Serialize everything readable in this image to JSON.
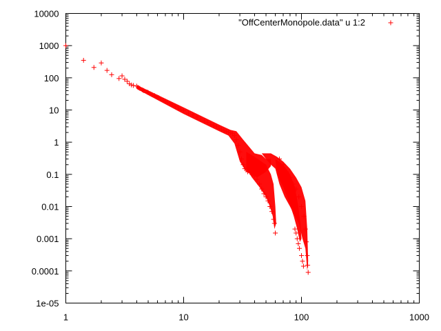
{
  "chart_data": {
    "type": "scatter",
    "xscale": "log",
    "yscale": "log",
    "xlim": [
      1,
      1000
    ],
    "ylim": [
      1e-05,
      10000
    ],
    "xticks": [
      1,
      10,
      100,
      1000
    ],
    "xtick_labels": [
      "1",
      "10",
      "100",
      "1000"
    ],
    "yticks": [
      1e-05,
      0.0001,
      0.001,
      0.01,
      0.1,
      1,
      10,
      100,
      1000,
      10000
    ],
    "ytick_labels": [
      "1e-05",
      "0.0001",
      "0.001",
      "0.01",
      "0.1",
      "1",
      "10",
      "100",
      "1000",
      "10000"
    ],
    "grid": false,
    "legend_position": "top-right",
    "series": [
      {
        "name": "\"OffCenterMonopole.data\" u 1:2",
        "marker": "+",
        "color": "#ff0000",
        "points": [
          [
            1,
            1000
          ],
          [
            1.414,
            350
          ],
          [
            1.732,
            210
          ],
          [
            2,
            290
          ],
          [
            2.236,
            170
          ],
          [
            2.449,
            125
          ],
          [
            2.828,
            95
          ],
          [
            3,
            115
          ],
          [
            3.162,
            90
          ],
          [
            3.317,
            78
          ],
          [
            3.464,
            65
          ],
          [
            3.606,
            60
          ],
          [
            3.742,
            58
          ],
          [
            4,
            55
          ],
          [
            4.123,
            50
          ],
          [
            4.243,
            47
          ],
          [
            4.472,
            42
          ],
          [
            4.583,
            40
          ],
          [
            4.899,
            36
          ],
          [
            5,
            35
          ],
          [
            5.196,
            32
          ],
          [
            5.385,
            30
          ],
          [
            5.657,
            28
          ],
          [
            5.831,
            26
          ],
          [
            6,
            25
          ],
          [
            6.164,
            24
          ],
          [
            6.403,
            22
          ],
          [
            6.708,
            20
          ],
          [
            7,
            18.5
          ],
          [
            7.28,
            17
          ],
          [
            7.616,
            16
          ],
          [
            8,
            14.5
          ],
          [
            8.485,
            13
          ],
          [
            9,
            11.5
          ],
          [
            9.487,
            10.5
          ],
          [
            10,
            9.5
          ],
          [
            11,
            8
          ],
          [
            12,
            7
          ],
          [
            13,
            6
          ],
          [
            14,
            5.2
          ],
          [
            15,
            4.6
          ],
          [
            16,
            4.1
          ],
          [
            17,
            3.6
          ],
          [
            18,
            3.3
          ],
          [
            19,
            3
          ],
          [
            20,
            2.7
          ],
          [
            21,
            2.5
          ],
          [
            22,
            2.3
          ],
          [
            23,
            2.15
          ],
          [
            24,
            2.05
          ],
          [
            25,
            1.95
          ],
          [
            26,
            1.85
          ],
          [
            27,
            1.6
          ],
          [
            28,
            1.2
          ],
          [
            29,
            0.8
          ],
          [
            30,
            0.5
          ],
          [
            31,
            0.3
          ],
          [
            32,
            0.2
          ],
          [
            33,
            0.15
          ],
          [
            35,
            0.12
          ],
          [
            38,
            0.1
          ],
          [
            40,
            0.09
          ],
          [
            42,
            0.07
          ],
          [
            44,
            0.05
          ],
          [
            46,
            0.035
          ],
          [
            48,
            0.025
          ],
          [
            50,
            0.02
          ],
          [
            52,
            0.015
          ],
          [
            54,
            0.01
          ],
          [
            56,
            0.007
          ],
          [
            58,
            0.004
          ],
          [
            59,
            0.003
          ],
          [
            60,
            0.0015
          ],
          [
            65,
            0.3
          ],
          [
            70,
            0.2
          ],
          [
            75,
            0.12
          ],
          [
            80,
            0.08
          ],
          [
            85,
            0.05
          ],
          [
            90,
            0.035
          ],
          [
            95,
            0.02
          ],
          [
            100,
            0.01
          ],
          [
            105,
            0.005
          ],
          [
            108,
            0.002
          ],
          [
            110,
            0.0008
          ],
          [
            112,
            0.0003
          ],
          [
            113,
            0.00015
          ],
          [
            114,
            9e-05
          ],
          [
            88,
            0.002
          ],
          [
            90,
            0.0015
          ],
          [
            92,
            0.001
          ],
          [
            94,
            0.0007
          ],
          [
            96,
            0.0005
          ],
          [
            100,
            0.0003
          ],
          [
            102,
            0.0002
          ],
          [
            104,
            0.00014
          ]
        ]
      }
    ]
  }
}
